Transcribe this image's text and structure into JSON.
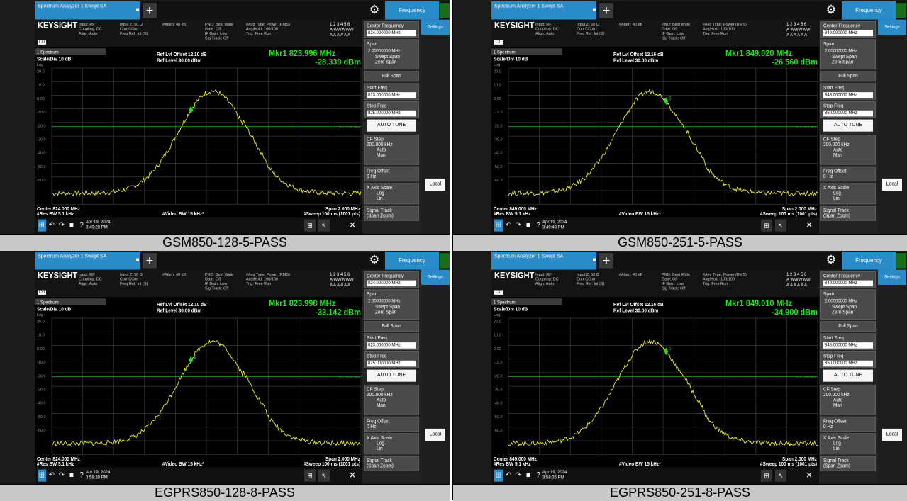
{
  "panels": [
    {
      "caption": "GSM850-128-5-PASS",
      "tab_title": "Spectrum Analyzer 1 Swept SA",
      "center_freq_value": "824.000000 MHz",
      "start_freq_value": "823.000000 MHz",
      "stop_freq_value": "825.000000 MHz",
      "marker_freq": "823.996 MHz",
      "marker_level": "-28.339 dBm",
      "ref_offset": "Ref Lvl Offset 12.10 dB",
      "center_label": "Center 824.000 MHz",
      "date": "Apr 19, 2024",
      "time": "3:49:28 PM",
      "marker_pos": 0.45,
      "shift": 0.0
    },
    {
      "caption": "GSM850-251-5-PASS",
      "tab_title": "Spectrum Analyzer 1 Swept SA",
      "center_freq_value": "849.000000 MHz",
      "start_freq_value": "848.000000 MHz",
      "stop_freq_value": "850.000000 MHz",
      "marker_freq": "849.020 MHz",
      "marker_level": "-26.560 dBm",
      "ref_offset": "Ref Lvl Offset 12.16 dB",
      "center_label": "Center 849.000 MHz",
      "date": "Apr 19, 2024",
      "time": "3:49:43 PM",
      "marker_pos": 0.51,
      "shift": -0.06
    },
    {
      "caption": "EGPRS850-128-8-PASS",
      "tab_title": "Spectrum Analyzer 1 Swept SA",
      "center_freq_value": "824.000000 MHz",
      "start_freq_value": "823.000000 MHz",
      "stop_freq_value": "825.000000 MHz",
      "marker_freq": "823.998 MHz",
      "marker_level": "-33.142 dBm",
      "ref_offset": "Ref Lvl Offset 12.10 dB",
      "center_label": "Center 824.000 MHz",
      "date": "Apr 19, 2024",
      "time": "3:58:20 PM",
      "marker_pos": 0.45,
      "shift": 0.0
    },
    {
      "caption": "EGPRS850-251-8-PASS",
      "tab_title": "Spectrum Analyzer 1 Swept SA",
      "center_freq_value": "849.000000 MHz",
      "start_freq_value": "848.000000 MHz",
      "stop_freq_value": "850.000000 MHz",
      "marker_freq": "849.010 MHz",
      "marker_level": "-34.900 dBm",
      "ref_offset": "Ref Lvl Offset 12.16 dB",
      "center_label": "Center 849.000 MHz",
      "date": "Apr 19, 2024",
      "time": "3:58:35 PM",
      "marker_pos": 0.51,
      "shift": -0.06
    }
  ],
  "common": {
    "brand": "KEYSIGHT",
    "frequency_tab": "Frequency",
    "settings": "Settings",
    "input_line": "Input: RF",
    "coupling_line": "Coupling: DC",
    "align_line": "Align: Auto",
    "inputz_line": "Input Z: 50 Ω",
    "corr_line": "Corr CCorr",
    "freqref_line": "Freq Ref: Int (S)",
    "atten_line": "#Atten: 40 dB",
    "pno_line": "PNO: Best Wide",
    "gate_line": "Gate: Off",
    "ifgain_line": "IF Gain: Low",
    "sigtrack_line": "Sig Track: Off",
    "avg_line": "#Avg Type: Power (RMS)",
    "avghold_line": "Avg|Hold: 100/100",
    "trig_line": "Trig: Free Run",
    "spectrum_dropdown": "1 Spectrum",
    "scale_div": "Scale/Div 10 dB",
    "log_label": "Log",
    "ref_level": "Ref Level 30.00 dBm",
    "mkr_label": "Mkr1",
    "res_bw": "#Res BW 5.1 kHz",
    "video_bw": "#Video BW 15 kHz*",
    "span_label": "Span 2.000 MHz",
    "sweep_label": "#Sweep 100 ms (1001 pts)",
    "center_frequency_label": "Center Frequency",
    "span_btn": "Span",
    "span_value": "2.00000000 MHz",
    "swept_span": "Swept Span",
    "zero_span": "Zero Span",
    "full_span": "Full Span",
    "start_freq": "Start Freq",
    "stop_freq": "Stop Freq",
    "auto_tune": "AUTO TUNE",
    "cf_step": "CF Step",
    "cf_step_value": "200.000 kHz",
    "auto": "Auto",
    "man": "Man",
    "freq_offset": "Freq Offset",
    "freq_offset_value": "0 Hz",
    "x_axis_scale": "X Axis Scale",
    "log": "Log",
    "lin": "Lin",
    "signal_track": "Signal Track",
    "span_zoom": "(Span Zoom)",
    "local": "Local",
    "y_ticks": [
      "20.0",
      "10.0",
      "0.00",
      "-10.0",
      "-20.0",
      "-30.0",
      "-40.0",
      "-50.0",
      "-60.0"
    ],
    "dl_label": "DL1 -13.00 dBm",
    "trace_numbers": "1 2 3 4 5 6",
    "trace_wa": "A WWWWW",
    "trace_aa": "A A A A A A",
    "lxi": "LXI",
    "marker_tag": "1"
  },
  "colors": {
    "accent": "#2a8bc9",
    "trace": "#e8e83a",
    "marker_text": "#22e022",
    "caption_bg": "#c8c8c8"
  }
}
